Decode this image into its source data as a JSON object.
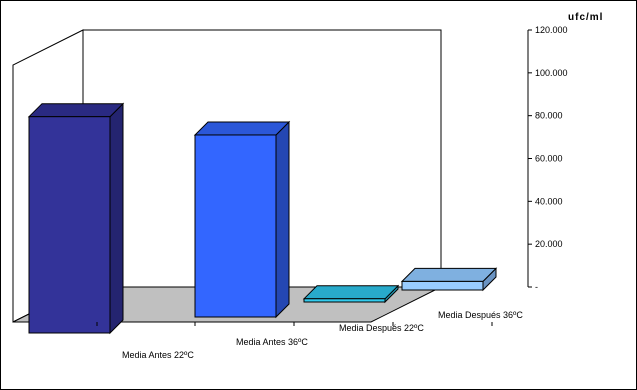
{
  "chart_data": {
    "type": "bar",
    "categories": [
      "Media Antes 22ºC",
      "Media Antes 36ºC",
      "Media Después 22ºC",
      "Media Después 36ºC"
    ],
    "values": [
      101000,
      85000,
      1500,
      4000
    ],
    "ylabel": "ufc/ml",
    "ylim": [
      0,
      120000
    ],
    "yticks": [
      0,
      20000,
      40000,
      60000,
      80000,
      100000,
      120000
    ],
    "ytick_labels": [
      "-",
      "20.000",
      "40.000",
      "60.000",
      "80.000",
      "100.000",
      "120.000"
    ],
    "grid": false,
    "legend": "none",
    "colors": {
      "bars": [
        {
          "front": "#333399",
          "side": "#242470",
          "top": "#2a2a82"
        },
        {
          "front": "#3366ff",
          "side": "#2447b3",
          "top": "#2b57d8"
        },
        {
          "front": "#33ccee",
          "side": "#239ab5",
          "top": "#28aacb"
        },
        {
          "front": "#99ccff",
          "side": "#6a93c2",
          "top": "#7fb0e0"
        }
      ],
      "floor": "#c0c0c0",
      "walls": "#ffffff",
      "outline": "#000000"
    }
  }
}
